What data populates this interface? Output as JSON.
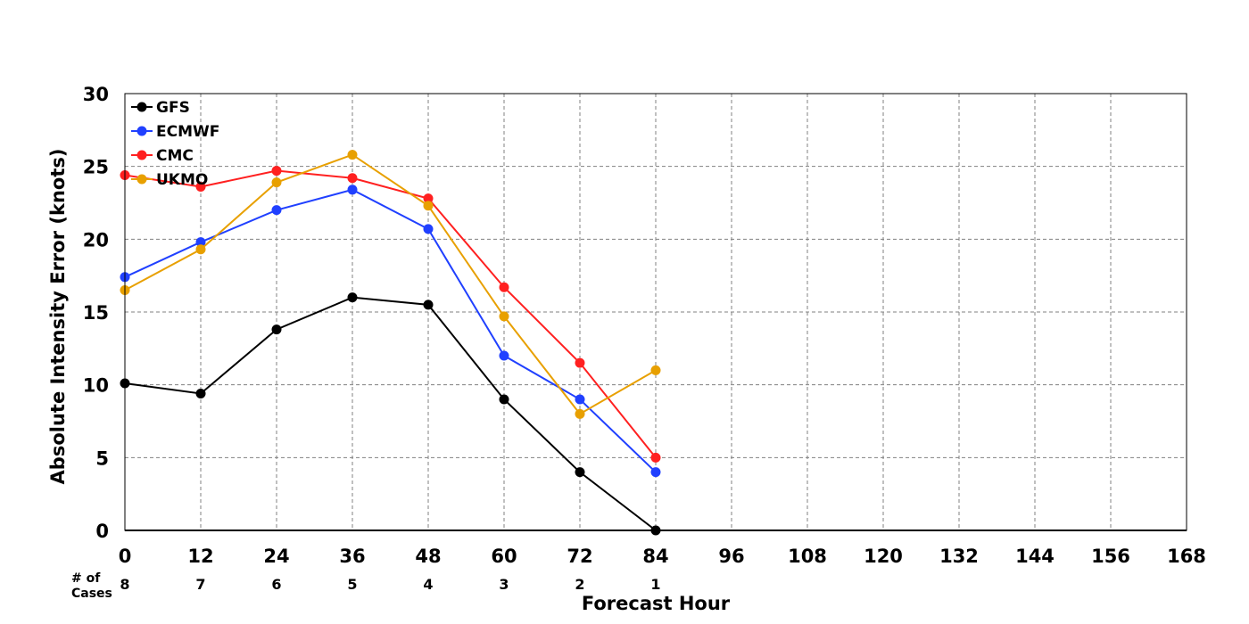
{
  "chart_data": {
    "type": "line",
    "title": "",
    "xlabel": "Forecast Hour",
    "ylabel": "Absolute Intensity Error (knots)",
    "xlim": [
      0,
      168
    ],
    "ylim": [
      0,
      30
    ],
    "xticks": [
      0,
      12,
      24,
      36,
      48,
      60,
      72,
      84,
      96,
      108,
      120,
      132,
      144,
      156,
      168
    ],
    "yticks": [
      0,
      5,
      10,
      15,
      20,
      25,
      30
    ],
    "grid": true,
    "legend_position": "top-left",
    "cases_label": "# of Cases",
    "cases_label_lines": [
      "# of",
      "Cases"
    ],
    "cases": {
      "x": [
        0,
        12,
        24,
        36,
        48,
        60,
        72,
        84
      ],
      "values": [
        "8",
        "7",
        "6",
        "5",
        "4",
        "3",
        "2",
        "1"
      ]
    },
    "x": [
      0,
      12,
      24,
      36,
      48,
      60,
      72,
      84
    ],
    "series": [
      {
        "name": "GFS",
        "color": "#000000",
        "values": [
          10.1,
          9.4,
          13.8,
          16.0,
          15.5,
          9.0,
          4.0,
          0.0
        ]
      },
      {
        "name": "ECMWF",
        "color": "#2040ff",
        "values": [
          17.4,
          19.8,
          22.0,
          23.4,
          20.7,
          12.0,
          9.0,
          4.0
        ]
      },
      {
        "name": "CMC",
        "color": "#ff2020",
        "values": [
          24.4,
          23.6,
          24.7,
          24.2,
          22.8,
          16.7,
          11.5,
          5.0
        ]
      },
      {
        "name": "UKMO",
        "color": "#e8a000",
        "values": [
          16.5,
          19.3,
          23.9,
          25.8,
          22.3,
          14.7,
          8.0,
          11.0
        ]
      }
    ]
  }
}
